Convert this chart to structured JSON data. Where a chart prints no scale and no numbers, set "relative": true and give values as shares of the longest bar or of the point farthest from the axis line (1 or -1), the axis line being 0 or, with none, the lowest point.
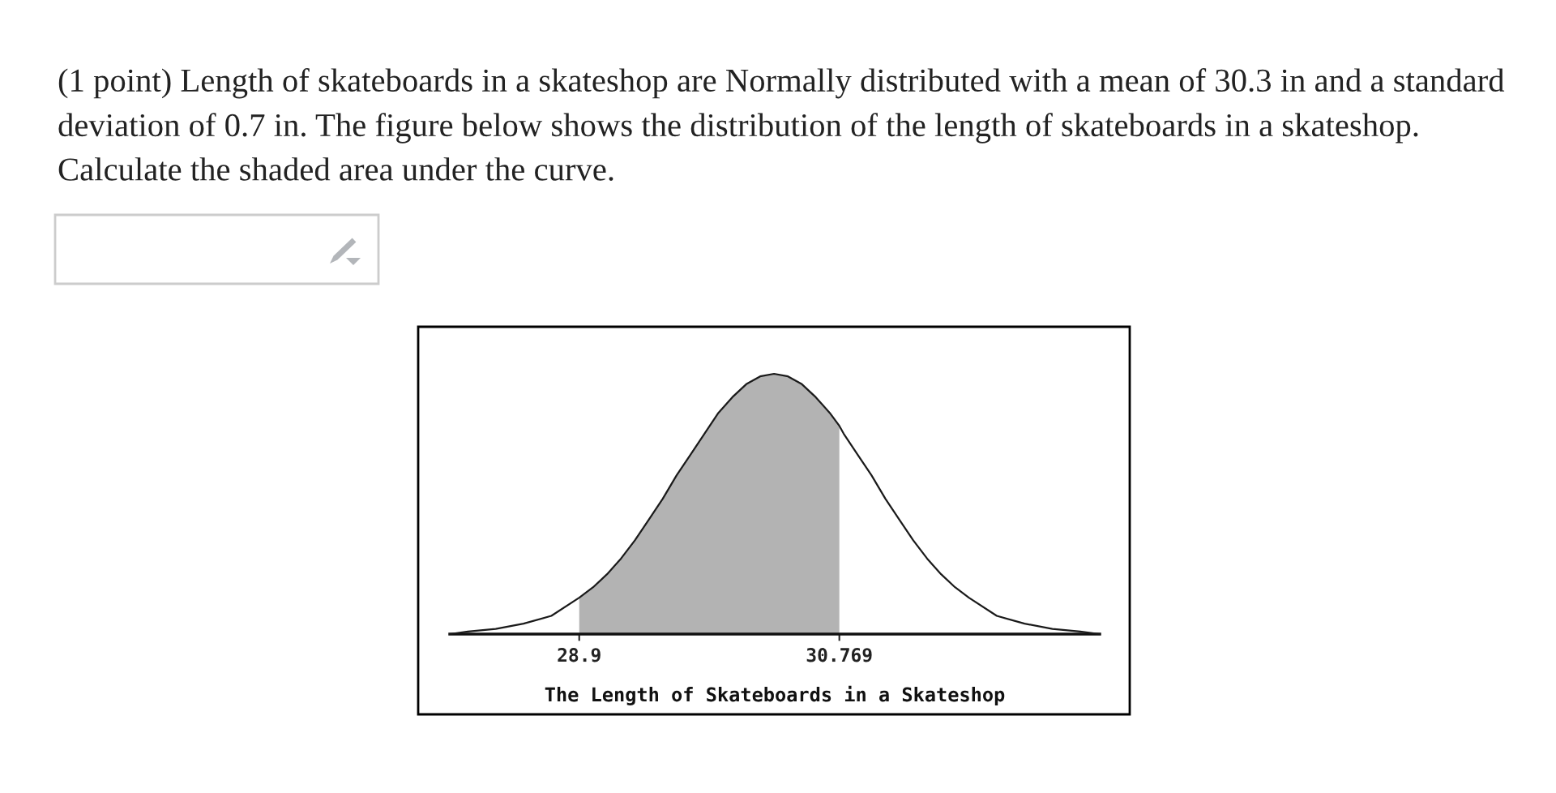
{
  "chart_data": {
    "type": "line",
    "title": "(1 point) Length of skateboards in a skateshop are Normally distributed with a mean of 30.3 in and a standard deviation of 0.7 in. The figure below shows the distribution of the length of skateboards in a skateshop. Calculate the shaded area under the curve.",
    "xlabel": "The Length of Skateboards in a Skateshop",
    "relative": true,
    "tick_labels": "x",
    "xlim": [
      27.97,
      32.64
    ],
    "xticks": [
      28.9,
      30.769
    ],
    "series": [
      {
        "type": "area",
        "color": "#b3b3b3",
        "x": [
          28.9,
          29.0,
          29.1,
          29.2,
          29.3,
          29.4,
          29.5,
          29.6,
          29.7,
          29.8,
          29.9,
          30.0,
          30.1,
          30.2,
          30.3,
          30.4,
          30.5,
          30.6,
          30.7,
          30.769
        ],
        "values": [
          0.14,
          0.18,
          0.23,
          0.29,
          0.36,
          0.44,
          0.52,
          0.61,
          0.69,
          0.77,
          0.85,
          0.91,
          0.96,
          0.99,
          1,
          0.99,
          0.96,
          0.91,
          0.85,
          0.8
        ]
      },
      {
        "color": "#1a1a1a",
        "x": [
          27.97,
          28.1,
          28.3,
          28.5,
          28.7,
          28.9,
          29.0,
          29.1,
          29.2,
          29.3,
          29.4,
          29.5,
          29.6,
          29.7,
          29.8,
          29.9,
          30.0,
          30.1,
          30.2,
          30.3,
          30.4,
          30.5,
          30.6,
          30.7,
          30.769,
          30.8,
          30.9,
          31.0,
          31.1,
          31.2,
          31.3,
          31.4,
          31.5,
          31.6,
          31.7,
          31.9,
          32.1,
          32.3,
          32.5,
          32.64
        ],
        "values": [
          0.0,
          0.01,
          0.02,
          0.04,
          0.07,
          0.14,
          0.18,
          0.23,
          0.29,
          0.36,
          0.44,
          0.52,
          0.61,
          0.69,
          0.77,
          0.85,
          0.91,
          0.96,
          0.99,
          1,
          0.99,
          0.96,
          0.91,
          0.85,
          0.8,
          0.77,
          0.69,
          0.61,
          0.52,
          0.44,
          0.36,
          0.29,
          0.23,
          0.18,
          0.14,
          0.07,
          0.04,
          0.02,
          0.01,
          0.0
        ]
      }
    ]
  }
}
